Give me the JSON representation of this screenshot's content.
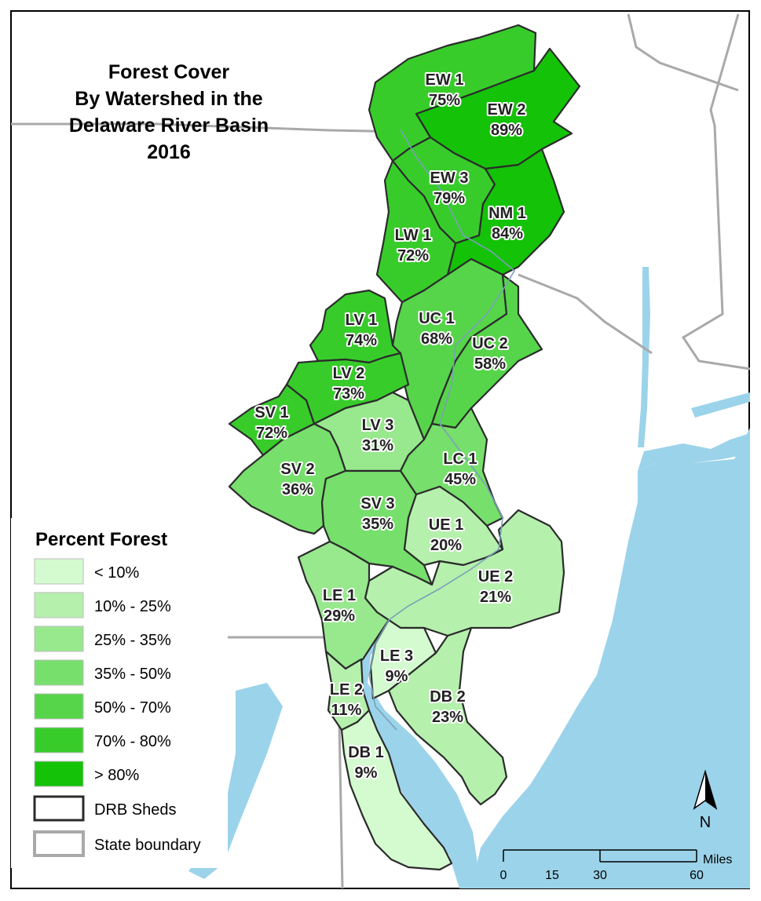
{
  "title": {
    "line1": "Forest Cover",
    "line2": "By Watershed in the",
    "line3": "Delaware River Basin",
    "line4": "2016"
  },
  "legend": {
    "title": "Percent Forest",
    "classes": [
      {
        "label": "< 10%",
        "color": "#d3fbcf"
      },
      {
        "label": "10% - 25%",
        "color": "#b5f0ad"
      },
      {
        "label": "25% - 35%",
        "color": "#98e88e"
      },
      {
        "label": "35% - 50%",
        "color": "#77df6c"
      },
      {
        "label": "50% - 70%",
        "color": "#56d54a"
      },
      {
        "label": "70% - 80%",
        "color": "#38cc2b"
      },
      {
        "label": "> 80%",
        "color": "#14c208"
      }
    ],
    "drb_label": "DRB Sheds",
    "state_label": "State boundary"
  },
  "watersheds": [
    {
      "code": "EW 1",
      "pct": "75%",
      "value": 75
    },
    {
      "code": "EW 2",
      "pct": "89%",
      "value": 89
    },
    {
      "code": "EW 3",
      "pct": "79%",
      "value": 79
    },
    {
      "code": "NM 1",
      "pct": "84%",
      "value": 84
    },
    {
      "code": "LW 1",
      "pct": "72%",
      "value": 72
    },
    {
      "code": "LV 1",
      "pct": "74%",
      "value": 74
    },
    {
      "code": "UC 1",
      "pct": "68%",
      "value": 68
    },
    {
      "code": "UC 2",
      "pct": "58%",
      "value": 58
    },
    {
      "code": "LV 2",
      "pct": "73%",
      "value": 73
    },
    {
      "code": "SV 1",
      "pct": "72%",
      "value": 72
    },
    {
      "code": "LV 3",
      "pct": "31%",
      "value": 31
    },
    {
      "code": "SV 2",
      "pct": "36%",
      "value": 36
    },
    {
      "code": "LC 1",
      "pct": "45%",
      "value": 45
    },
    {
      "code": "SV 3",
      "pct": "35%",
      "value": 35
    },
    {
      "code": "UE 1",
      "pct": "20%",
      "value": 20
    },
    {
      "code": "UE 2",
      "pct": "21%",
      "value": 21
    },
    {
      "code": "LE 1",
      "pct": "29%",
      "value": 29
    },
    {
      "code": "LE 3",
      "pct": "9%",
      "value": 9
    },
    {
      "code": "LE 2",
      "pct": "11%",
      "value": 11
    },
    {
      "code": "DB 2",
      "pct": "23%",
      "value": 23
    },
    {
      "code": "DB 1",
      "pct": "9%",
      "value": 9
    }
  ],
  "scale_bar": {
    "ticks": [
      "0",
      "15",
      "30",
      "60"
    ],
    "unit": "Miles"
  },
  "north_arrow": {
    "letter": "N",
    "icon": "north-arrow-icon"
  },
  "colors": {
    "water": "#9bd3ea",
    "state_boundary": "#a9a9a9",
    "shed_outline": "#2b2b2b"
  }
}
